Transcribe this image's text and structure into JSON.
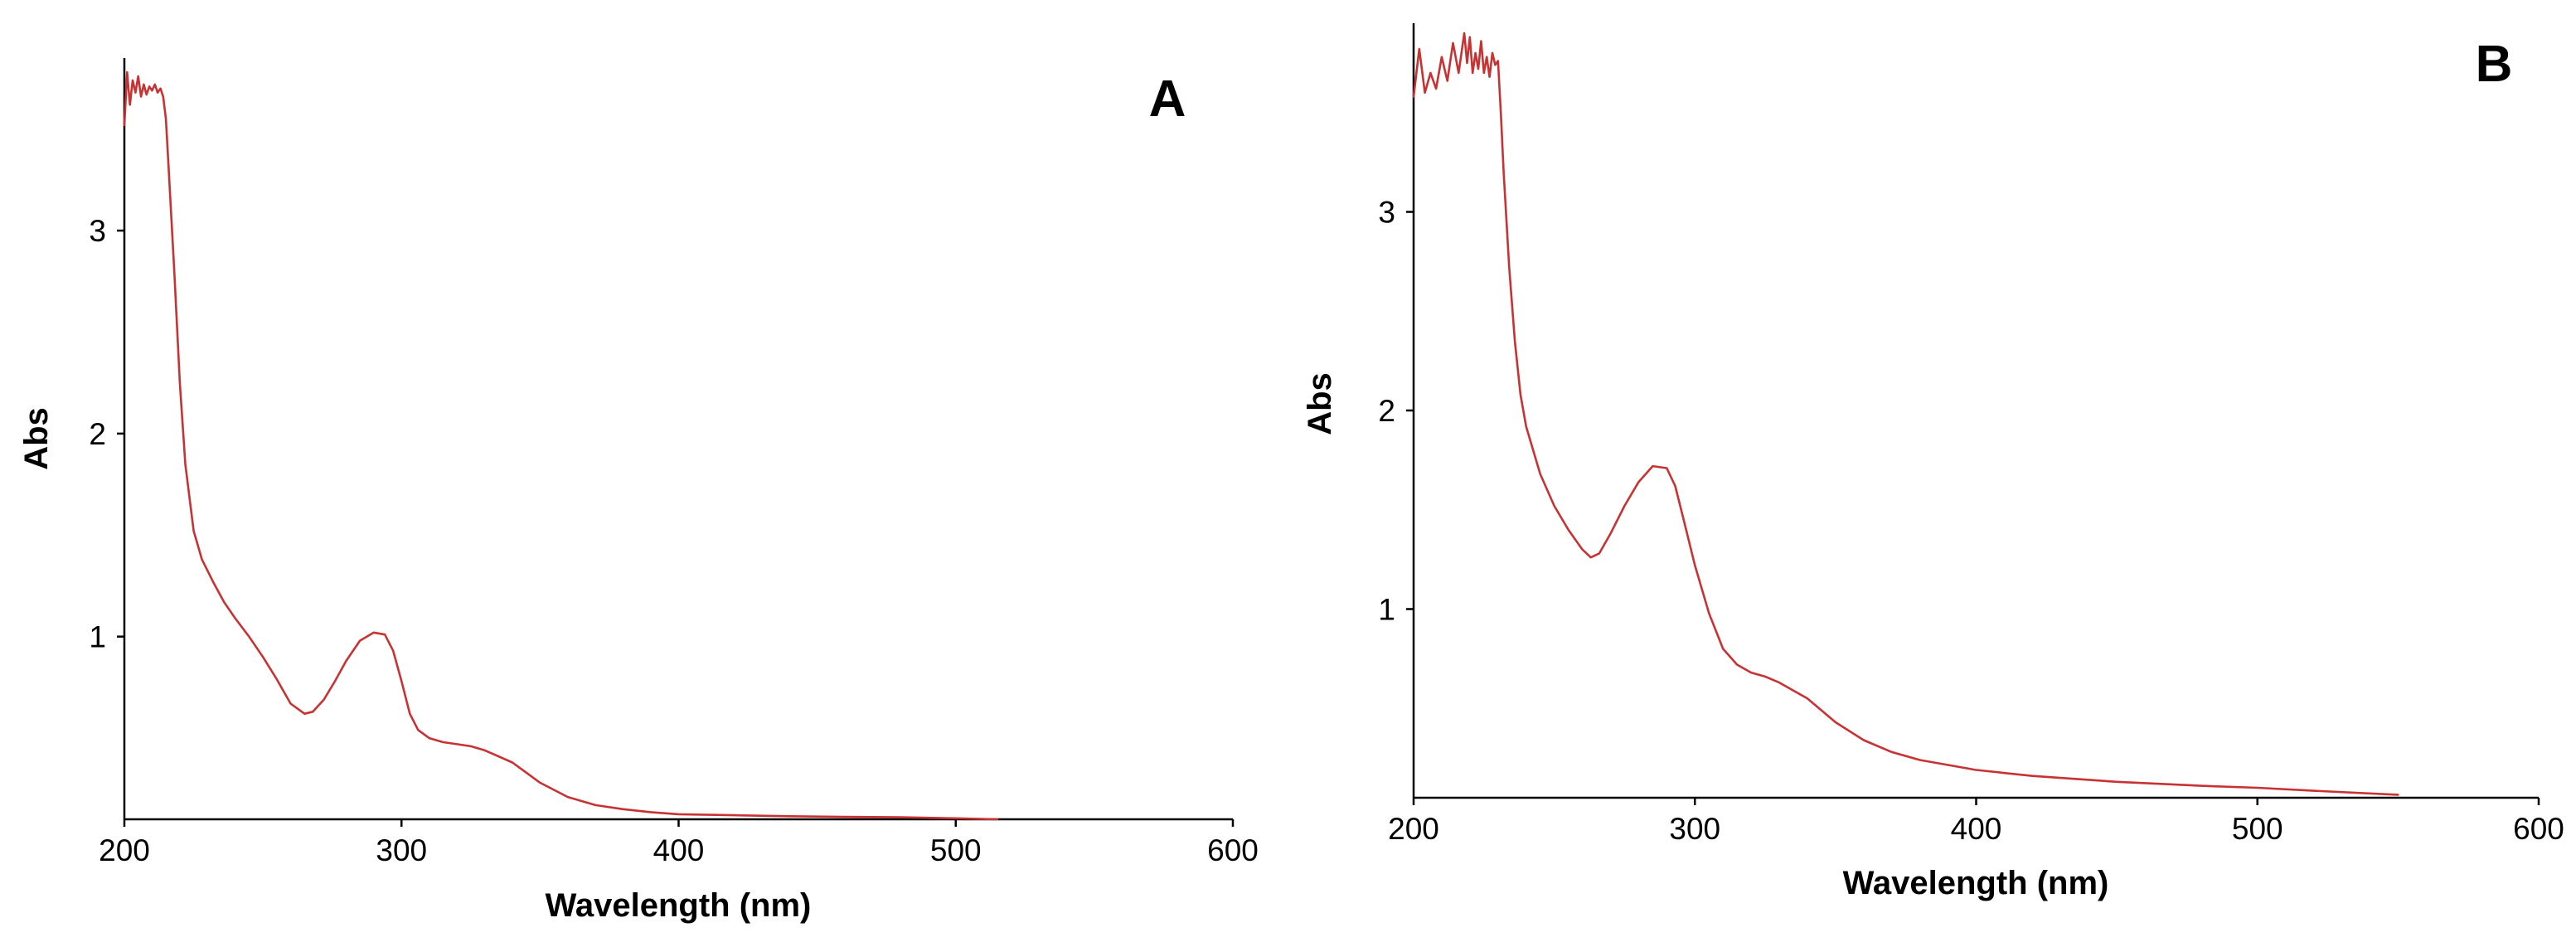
{
  "colors": {
    "spectrum": "#c83232",
    "axis": "#000000",
    "background": "#ffffff"
  },
  "chart_data": [
    {
      "type": "line",
      "panel_label": "A",
      "xlabel": "Wavelength (nm)",
      "ylabel": "Abs",
      "xlim": [
        200,
        600
      ],
      "ylim": [
        0.1,
        3.85
      ],
      "xticks": [
        200,
        300,
        400,
        500,
        600
      ],
      "yticks": [
        1,
        2,
        3
      ],
      "grid": false,
      "series": [
        {
          "x": [
            200,
            201,
            202,
            203,
            204,
            205,
            206,
            207,
            208,
            209,
            210,
            211,
            212,
            213,
            214,
            215,
            216,
            218,
            220,
            222,
            225,
            228,
            232,
            236,
            240,
            245,
            250,
            255,
            260,
            265,
            268,
            272,
            276,
            280,
            285,
            290,
            294,
            297,
            300,
            303,
            306,
            310,
            315,
            320,
            325,
            330,
            335,
            340,
            345,
            350,
            360,
            370,
            380,
            390,
            400,
            420,
            440,
            460,
            480,
            500,
            515
          ],
          "y": [
            3.52,
            3.78,
            3.62,
            3.74,
            3.68,
            3.76,
            3.66,
            3.72,
            3.67,
            3.71,
            3.69,
            3.72,
            3.68,
            3.7,
            3.66,
            3.55,
            3.3,
            2.8,
            2.25,
            1.85,
            1.52,
            1.38,
            1.27,
            1.17,
            1.09,
            1.0,
            0.9,
            0.79,
            0.67,
            0.62,
            0.63,
            0.69,
            0.78,
            0.88,
            0.98,
            1.02,
            1.01,
            0.93,
            0.78,
            0.62,
            0.54,
            0.5,
            0.48,
            0.47,
            0.46,
            0.44,
            0.41,
            0.38,
            0.33,
            0.28,
            0.21,
            0.17,
            0.15,
            0.135,
            0.125,
            0.12,
            0.115,
            0.112,
            0.11,
            0.105,
            0.1
          ]
        }
      ]
    },
    {
      "type": "line",
      "panel_label": "B",
      "xlabel": "Wavelength (nm)",
      "ylabel": "Abs",
      "xlim": [
        200,
        600
      ],
      "ylim": [
        0.05,
        3.95
      ],
      "xticks": [
        200,
        300,
        400,
        500,
        600
      ],
      "yticks": [
        1,
        2,
        3
      ],
      "grid": false,
      "series": [
        {
          "x": [
            200,
            202,
            204,
            206,
            208,
            210,
            212,
            214,
            216,
            218,
            219,
            220,
            221,
            222,
            223,
            224,
            225,
            226,
            227,
            228,
            229,
            230,
            231,
            232,
            234,
            236,
            238,
            240,
            245,
            250,
            255,
            260,
            263,
            266,
            270,
            275,
            280,
            285,
            290,
            293,
            296,
            300,
            305,
            310,
            315,
            320,
            325,
            330,
            340,
            350,
            360,
            370,
            380,
            400,
            420,
            450,
            480,
            500,
            520,
            550
          ],
          "y": [
            3.58,
            3.82,
            3.6,
            3.7,
            3.62,
            3.78,
            3.66,
            3.85,
            3.7,
            3.9,
            3.75,
            3.88,
            3.7,
            3.8,
            3.72,
            3.86,
            3.7,
            3.78,
            3.68,
            3.8,
            3.74,
            3.76,
            3.5,
            3.2,
            2.72,
            2.35,
            2.08,
            1.92,
            1.68,
            1.52,
            1.4,
            1.3,
            1.26,
            1.28,
            1.38,
            1.52,
            1.64,
            1.72,
            1.71,
            1.62,
            1.45,
            1.22,
            0.98,
            0.8,
            0.72,
            0.68,
            0.66,
            0.63,
            0.55,
            0.43,
            0.34,
            0.28,
            0.24,
            0.19,
            0.16,
            0.13,
            0.11,
            0.1,
            0.085,
            0.065
          ]
        }
      ]
    }
  ]
}
